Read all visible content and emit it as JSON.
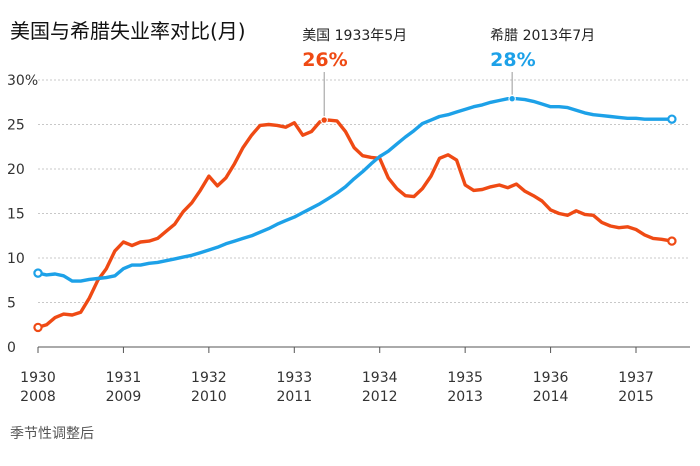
{
  "chart_data": {
    "type": "line",
    "title": "美国与希腊失业率对比(月)",
    "xlabel": "",
    "ylabel": "",
    "ylim": [
      0,
      30
    ],
    "yticks": [
      "0",
      "5",
      "10",
      "15",
      "20",
      "25",
      "30%"
    ],
    "grid": true,
    "xlim": [
      0,
      7.55
    ],
    "x_tick_labels": [
      {
        "top": "1930",
        "bottom": "2008"
      },
      {
        "top": "1931",
        "bottom": "2009"
      },
      {
        "top": "1932",
        "bottom": "2010"
      },
      {
        "top": "1933",
        "bottom": "2011"
      },
      {
        "top": "1934",
        "bottom": "2012"
      },
      {
        "top": "1935",
        "bottom": "2013"
      },
      {
        "top": "1936",
        "bottom": "2014"
      },
      {
        "top": "1937",
        "bottom": "2015"
      }
    ],
    "x_axis_note": "x = years since Jan 1930 (US) / Jan 2008 (Greece)",
    "series": [
      {
        "name": "美国",
        "color": "#ef4a14",
        "x": [
          0,
          0.1,
          0.2,
          0.3,
          0.4,
          0.5,
          0.6,
          0.7,
          0.8,
          0.9,
          1.0,
          1.1,
          1.2,
          1.3,
          1.4,
          1.5,
          1.6,
          1.7,
          1.8,
          1.9,
          2.0,
          2.1,
          2.2,
          2.3,
          2.4,
          2.5,
          2.6,
          2.7,
          2.8,
          2.9,
          3.0,
          3.1,
          3.2,
          3.3,
          3.4,
          3.5,
          3.6,
          3.7,
          3.8,
          3.9,
          4.0,
          4.1,
          4.2,
          4.3,
          4.4,
          4.5,
          4.6,
          4.7,
          4.8,
          4.9,
          5.0,
          5.1,
          5.2,
          5.3,
          5.4,
          5.5,
          5.6,
          5.7,
          5.8,
          5.9,
          6.0,
          6.1,
          6.2,
          6.3,
          6.4,
          6.5,
          6.6,
          6.7,
          6.8,
          6.9,
          7.0,
          7.1,
          7.2,
          7.3,
          7.42
        ],
        "values": [
          2.2,
          2.5,
          3.3,
          3.7,
          3.6,
          3.9,
          5.5,
          7.5,
          8.8,
          10.8,
          11.8,
          11.4,
          11.8,
          11.9,
          12.2,
          13.0,
          13.8,
          15.2,
          16.2,
          17.6,
          19.2,
          18.1,
          19.0,
          20.6,
          22.4,
          23.8,
          24.9,
          25.0,
          24.9,
          24.7,
          25.2,
          23.8,
          24.2,
          25.3,
          25.5,
          25.4,
          24.2,
          22.4,
          21.5,
          21.3,
          21.2,
          19.0,
          17.8,
          17.0,
          16.9,
          17.8,
          19.2,
          21.2,
          21.6,
          21.0,
          18.2,
          17.6,
          17.7,
          18.0,
          18.2,
          17.9,
          18.3,
          17.5,
          17.0,
          16.4,
          15.4,
          15.0,
          14.8,
          15.3,
          14.9,
          14.8,
          14.0,
          13.6,
          13.4,
          13.5,
          13.2,
          12.6,
          12.2,
          12.1,
          11.9
        ],
        "annotation": {
          "label": "美国 1933年5月",
          "value_text": "26%",
          "x": 3.35,
          "y": 25.5
        }
      },
      {
        "name": "希腊",
        "color": "#1da1e8",
        "x": [
          0,
          0.1,
          0.2,
          0.3,
          0.4,
          0.5,
          0.6,
          0.7,
          0.8,
          0.9,
          1.0,
          1.1,
          1.2,
          1.3,
          1.4,
          1.5,
          1.6,
          1.7,
          1.8,
          1.9,
          2.0,
          2.1,
          2.2,
          2.3,
          2.4,
          2.5,
          2.6,
          2.7,
          2.8,
          2.9,
          3.0,
          3.1,
          3.2,
          3.3,
          3.4,
          3.5,
          3.6,
          3.7,
          3.8,
          3.9,
          4.0,
          4.1,
          4.2,
          4.3,
          4.4,
          4.5,
          4.6,
          4.7,
          4.8,
          4.9,
          5.0,
          5.1,
          5.2,
          5.3,
          5.4,
          5.5,
          5.6,
          5.7,
          5.8,
          5.9,
          6.0,
          6.1,
          6.2,
          6.3,
          6.4,
          6.5,
          6.6,
          6.7,
          6.8,
          6.9,
          7.0,
          7.1,
          7.2,
          7.3,
          7.42
        ],
        "values": [
          8.3,
          8.1,
          8.2,
          8.0,
          7.4,
          7.4,
          7.6,
          7.7,
          7.8,
          8.0,
          8.8,
          9.2,
          9.2,
          9.4,
          9.5,
          9.7,
          9.9,
          10.1,
          10.3,
          10.6,
          10.9,
          11.2,
          11.6,
          11.9,
          12.2,
          12.5,
          12.9,
          13.3,
          13.8,
          14.2,
          14.6,
          15.1,
          15.6,
          16.1,
          16.7,
          17.3,
          18.0,
          18.9,
          19.7,
          20.6,
          21.4,
          22.0,
          22.8,
          23.6,
          24.3,
          25.1,
          25.5,
          25.9,
          26.1,
          26.4,
          26.7,
          27.0,
          27.2,
          27.5,
          27.7,
          27.9,
          27.9,
          27.8,
          27.6,
          27.3,
          27.0,
          27.0,
          26.9,
          26.6,
          26.3,
          26.1,
          26.0,
          25.9,
          25.8,
          25.7,
          25.7,
          25.6,
          25.6,
          25.6,
          25.6
        ],
        "annotation": {
          "label": "希腊 2013年7月",
          "value_text": "28%",
          "x": 5.55,
          "y": 27.9
        }
      }
    ],
    "footnote": "季节性调整后"
  }
}
